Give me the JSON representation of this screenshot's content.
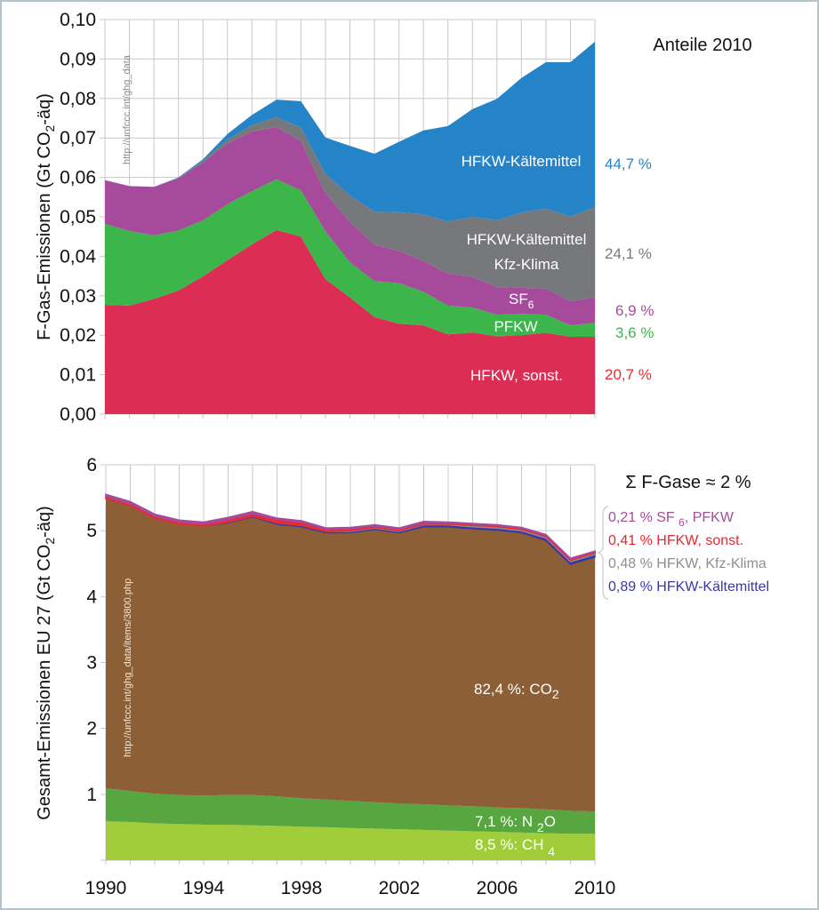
{
  "chart_data": [
    {
      "type": "area",
      "stacked": true,
      "title": "Anteile 2010",
      "xlabel": "",
      "ylabel": "F-Gas-Emissionen (Gt CO2-äq)",
      "ylabel_parts": {
        "pre": "F-Gas-Emissionen (Gt CO",
        "sub": "2",
        "post": "-äq)"
      },
      "ylim": [
        0,
        0.1
      ],
      "y_ticks": [
        "0,00",
        "0,01",
        "0,02",
        "0,03",
        "0,04",
        "0,05",
        "0,06",
        "0,07",
        "0,08",
        "0,09",
        "0,10"
      ],
      "y_tick_values": [
        0,
        0.01,
        0.02,
        0.03,
        0.04,
        0.05,
        0.06,
        0.07,
        0.08,
        0.09,
        0.1
      ],
      "grid": true,
      "source_note": "http://unfccc.int/ghg_data",
      "x": [
        1990,
        1991,
        1992,
        1993,
        1994,
        1995,
        1996,
        1997,
        1998,
        1999,
        2000,
        2001,
        2002,
        2003,
        2004,
        2005,
        2006,
        2007,
        2008,
        2009,
        2010
      ],
      "series": [
        {
          "name": "HFKW, sonst.",
          "color": "#dc2d54",
          "label_color": "#e8272f",
          "share_2010": "20,7 %",
          "values": [
            0.0277,
            0.0275,
            0.0292,
            0.0313,
            0.0349,
            0.039,
            0.043,
            0.0467,
            0.045,
            0.0342,
            0.0296,
            0.0246,
            0.0229,
            0.0225,
            0.0202,
            0.0207,
            0.0197,
            0.02,
            0.0206,
            0.0196,
            0.0196
          ]
        },
        {
          "name": "PFKW",
          "color": "#3cb64b",
          "label_color": "#3cb64b",
          "share_2010": "3,6 %",
          "values": [
            0.0205,
            0.0189,
            0.0161,
            0.0152,
            0.0142,
            0.0142,
            0.0135,
            0.0128,
            0.0117,
            0.0121,
            0.0089,
            0.0091,
            0.0103,
            0.0085,
            0.0073,
            0.0063,
            0.0055,
            0.0054,
            0.0046,
            0.0029,
            0.0035
          ]
        },
        {
          "name": "SF6",
          "name_parts": {
            "pre": "SF",
            "sub": "6"
          },
          "color": "#a64b9b",
          "label_color": "#a64b9b",
          "share_2010": "6,9 %",
          "values": [
            0.0111,
            0.0114,
            0.0123,
            0.0133,
            0.0147,
            0.0154,
            0.0151,
            0.0133,
            0.0125,
            0.0097,
            0.0102,
            0.0093,
            0.0082,
            0.0078,
            0.0081,
            0.0078,
            0.007,
            0.0066,
            0.0066,
            0.0061,
            0.0065
          ]
        },
        {
          "name": "HFKW-Kältemittel Kfz-Klima",
          "name_lines": [
            "HFKW-Kältemittel",
            "Kfz-Klima"
          ],
          "color": "#77787b",
          "label_color": "#77787b",
          "share_2010": "24,1 %",
          "values": [
            0.0,
            0.0,
            0.0,
            0.0001,
            0.0004,
            0.001,
            0.0016,
            0.0025,
            0.0034,
            0.0049,
            0.0067,
            0.0083,
            0.0098,
            0.0118,
            0.0132,
            0.0152,
            0.017,
            0.0191,
            0.0203,
            0.0215,
            0.0228
          ]
        },
        {
          "name": "HFKW-Kältemittel",
          "color": "#2584c8",
          "label_color": "#2584c8",
          "share_2010": "44,7 %",
          "values": [
            0.0,
            0.0,
            0.0,
            0.0001,
            0.0004,
            0.0014,
            0.0026,
            0.0044,
            0.0067,
            0.0092,
            0.0126,
            0.0147,
            0.0178,
            0.0213,
            0.0242,
            0.0273,
            0.0307,
            0.0341,
            0.0371,
            0.0391,
            0.042
          ]
        }
      ]
    },
    {
      "type": "area",
      "stacked": true,
      "title": "Σ F-Gase ≈ 2 %",
      "xlabel": "",
      "ylabel": "Gesamt-Emissionen EU 27 (Gt CO2-äq)",
      "ylabel_parts": {
        "pre": "Gesamt-Emissionen EU 27 (Gt CO",
        "sub": "2",
        "post": "-äq)"
      },
      "ylim": [
        0,
        6
      ],
      "y_ticks": [
        "1",
        "2",
        "3",
        "4",
        "5",
        "6"
      ],
      "y_tick_values": [
        1,
        2,
        3,
        4,
        5,
        6
      ],
      "x_ticks": [
        "1990",
        "1994",
        "1998",
        "2002",
        "2006",
        "2010"
      ],
      "x_tick_values": [
        1990,
        1994,
        1998,
        2002,
        2006,
        2010
      ],
      "grid": true,
      "source_note": "http://unfccc.int/ghg_data/items/3800.php",
      "x": [
        1990,
        1991,
        1992,
        1993,
        1994,
        1995,
        1996,
        1997,
        1998,
        1999,
        2000,
        2001,
        2002,
        2003,
        2004,
        2005,
        2006,
        2007,
        2008,
        2009,
        2010
      ],
      "series": [
        {
          "name": "CH4",
          "label": {
            "pre": "8,5 %: CH ",
            "sub": "4"
          },
          "share": "8,5 %",
          "color": "#a2cd3a",
          "values": [
            0.59,
            0.58,
            0.56,
            0.55,
            0.54,
            0.54,
            0.53,
            0.52,
            0.51,
            0.5,
            0.49,
            0.48,
            0.47,
            0.46,
            0.45,
            0.44,
            0.43,
            0.42,
            0.41,
            0.4,
            0.4
          ]
        },
        {
          "name": "N2O",
          "label": {
            "pre": "7,1 %: N ",
            "sub": "2",
            "post": "O"
          },
          "share": "7,1 %",
          "color": "#57a640",
          "values": [
            0.5,
            0.47,
            0.45,
            0.44,
            0.44,
            0.45,
            0.46,
            0.45,
            0.43,
            0.42,
            0.41,
            0.4,
            0.39,
            0.39,
            0.38,
            0.38,
            0.37,
            0.37,
            0.36,
            0.35,
            0.34
          ]
        },
        {
          "name": "CO2",
          "label": {
            "pre": "82,4 %: CO",
            "sub": "2"
          },
          "share": "82,4 %",
          "color": "#8c5f37",
          "values": [
            4.4,
            4.33,
            4.18,
            4.11,
            4.09,
            4.13,
            4.22,
            4.13,
            4.12,
            4.05,
            4.07,
            4.14,
            4.11,
            4.21,
            4.23,
            4.21,
            4.21,
            4.18,
            4.08,
            3.74,
            3.86
          ]
        },
        {
          "name": "HFKW-Kältemittel",
          "share": "0,89 %",
          "color": "#3a37a6",
          "values": [
            0.0,
            0.0,
            0.0,
            0.0,
            0.0,
            0.01,
            0.01,
            0.02,
            0.02,
            0.02,
            0.02,
            0.02,
            0.02,
            0.03,
            0.03,
            0.03,
            0.03,
            0.03,
            0.04,
            0.04,
            0.04
          ]
        },
        {
          "name": "HFKW, Kfz-Klima",
          "share": "0,48 %",
          "color": "#8e8e93",
          "values": [
            0.0,
            0.0,
            0.0,
            0.0,
            0.0,
            0.0,
            0.0,
            0.0,
            0.0,
            0.0,
            0.01,
            0.01,
            0.01,
            0.01,
            0.01,
            0.02,
            0.02,
            0.02,
            0.02,
            0.02,
            0.02
          ]
        },
        {
          "name": "HFKW, sonst.",
          "share": "0,41 %",
          "color": "#e82b2f",
          "values": [
            0.03,
            0.03,
            0.03,
            0.03,
            0.03,
            0.04,
            0.04,
            0.05,
            0.05,
            0.03,
            0.03,
            0.02,
            0.02,
            0.02,
            0.02,
            0.02,
            0.02,
            0.02,
            0.02,
            0.02,
            0.02
          ]
        },
        {
          "name": "SF6, PFKW",
          "share": "0,21 %",
          "color": "#a64b9b",
          "values": [
            0.03,
            0.03,
            0.03,
            0.03,
            0.03,
            0.03,
            0.03,
            0.02,
            0.02,
            0.02,
            0.02,
            0.02,
            0.02,
            0.02,
            0.01,
            0.01,
            0.01,
            0.01,
            0.01,
            0.01,
            0.01
          ]
        }
      ],
      "legend": [
        {
          "text": "0,21 % SF ",
          "sub": "6",
          "post": ", PFKW",
          "color": "#a64b9b"
        },
        {
          "text": "0,41 % HFKW, sonst.",
          "color": "#e8272f"
        },
        {
          "text": "0,48 % HFKW, Kfz-Klima",
          "color": "#8e8e93"
        },
        {
          "text": "0,89 % HFKW-Kältemittel",
          "color": "#3a37a6"
        }
      ]
    }
  ]
}
